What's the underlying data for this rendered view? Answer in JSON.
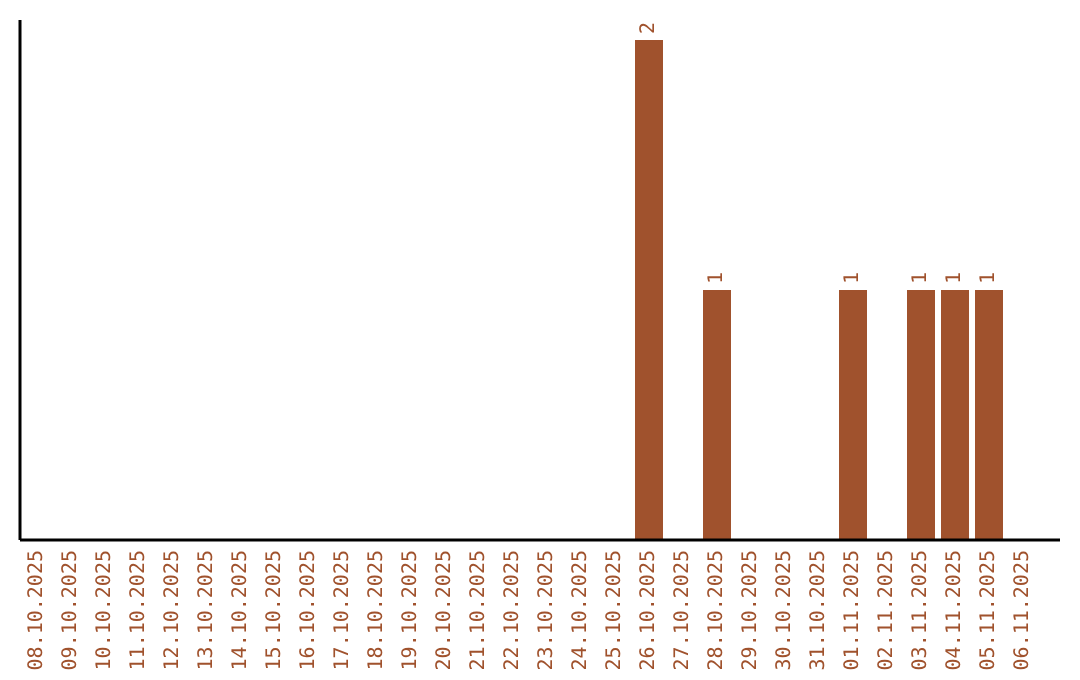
{
  "chart_data": {
    "type": "bar",
    "categories": [
      "08.10.2025",
      "09.10.2025",
      "10.10.2025",
      "11.10.2025",
      "12.10.2025",
      "13.10.2025",
      "14.10.2025",
      "15.10.2025",
      "16.10.2025",
      "17.10.2025",
      "18.10.2025",
      "19.10.2025",
      "20.10.2025",
      "21.10.2025",
      "22.10.2025",
      "23.10.2025",
      "24.10.2025",
      "25.10.2025",
      "26.10.2025",
      "27.10.2025",
      "28.10.2025",
      "29.10.2025",
      "30.10.2025",
      "31.10.2025",
      "01.11.2025",
      "02.11.2025",
      "03.11.2025",
      "04.11.2025",
      "05.11.2025",
      "06.11.2025"
    ],
    "values": [
      null,
      null,
      null,
      null,
      null,
      null,
      null,
      null,
      null,
      null,
      null,
      null,
      null,
      null,
      null,
      null,
      null,
      null,
      2,
      null,
      1,
      null,
      null,
      null,
      1,
      null,
      1,
      1,
      1,
      null
    ],
    "color": "#a0522d",
    "ylim": [
      0,
      2.08
    ],
    "data_labels": true,
    "tick_labels": "x"
  }
}
